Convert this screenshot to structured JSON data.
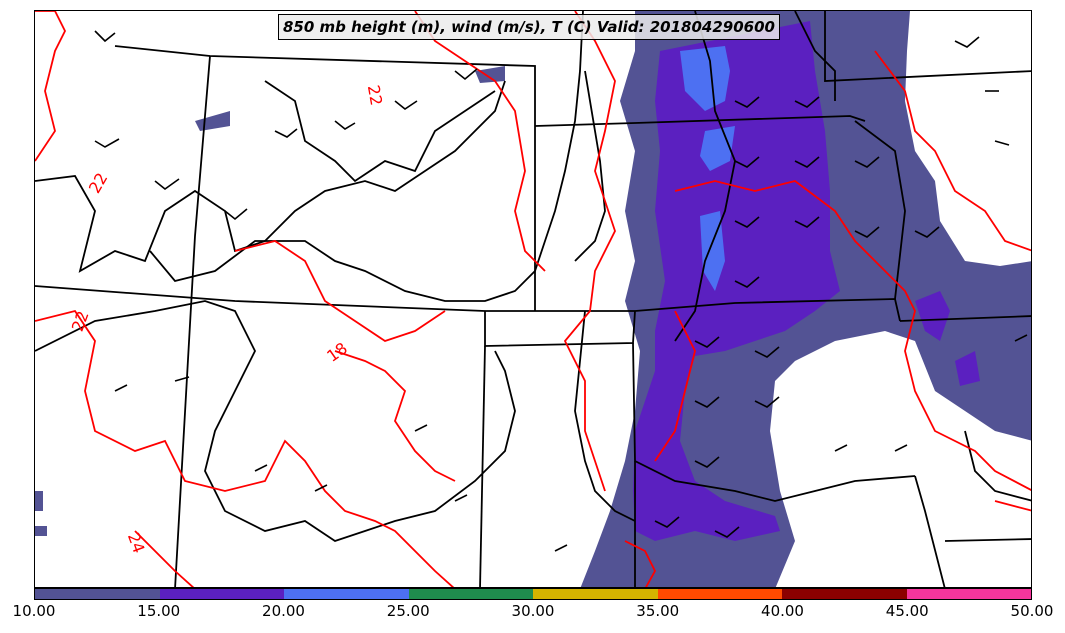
{
  "title": "850 mb height (m), wind (m/s), T (C) Valid: 201804290600",
  "colorbar": {
    "colors": [
      "#535394",
      "#5b20c0",
      "#4d70f2",
      "#1f8c4d",
      "#d4b400",
      "#ff4a00",
      "#8b0000",
      "#f5359c"
    ],
    "labels": [
      "10.00",
      "15.00",
      "20.00",
      "25.00",
      "30.00",
      "35.00",
      "40.00",
      "45.00",
      "50.00"
    ]
  },
  "contour_labels": [
    {
      "text": "22"
    },
    {
      "text": "22"
    },
    {
      "text": "22"
    },
    {
      "text": "18"
    },
    {
      "text": "24"
    }
  ],
  "colors": {
    "temperature_contour": "#ff0000",
    "height_contour": "#000000",
    "borders": "#000000"
  }
}
